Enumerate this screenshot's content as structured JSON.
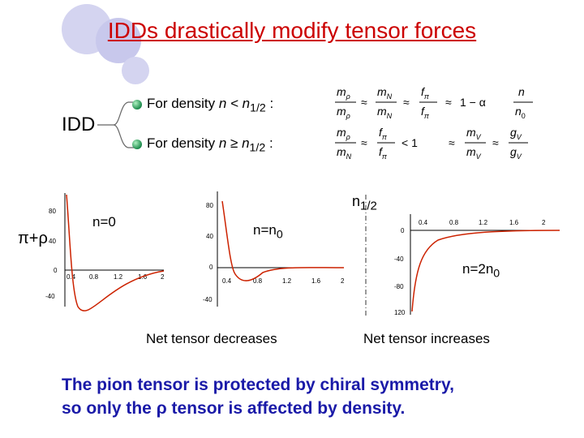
{
  "title": "IDDs drastically modify tensor forces",
  "idd_label": "IDD",
  "bullets": [
    {
      "pre": "For density ",
      "var": "n",
      "rel": " < ",
      "nvar": "n",
      "sub": "1/2",
      "post": " :"
    },
    {
      "pre": "For density ",
      "var": "n",
      "rel": " ≥ ",
      "nvar": "n",
      "sub": "1/2",
      "post": " :"
    }
  ],
  "equations": {
    "row1": {
      "mrho": "m",
      "mrho_sub": "ρ",
      "mN": "m",
      "mN_sub": "N",
      "fpi": "f",
      "fpi_sub": "π",
      "approx": "≈",
      "one_minus": "1 − α",
      "n": "n",
      "n0": "n",
      "n0_sub": "0"
    },
    "row2": {
      "mrho": "m",
      "mrho_sub": "ρ",
      "mN": "m",
      "mN_sub": "N",
      "fpi": "f",
      "fpi_sub": "π",
      "approx": "≈",
      "lt_one": "< 1",
      "mV": "m",
      "mV_sub": "V",
      "gV": "g",
      "gV_sub": "V"
    }
  },
  "n_half_label": {
    "n": "n",
    "sub": "1/2"
  },
  "pi_rho_label": "π+ρ",
  "plots": {
    "p1": {
      "label": "n=0",
      "yticks": [
        "80",
        "40",
        "0",
        "-40"
      ],
      "xticks": [
        "0.4",
        "0.8",
        "1.2",
        "1.6",
        "2"
      ]
    },
    "p2": {
      "label": "n=n",
      "label_sub": "0",
      "yticks": [
        "80",
        "40",
        "0",
        "-40"
      ],
      "xticks": [
        "0.4",
        "0.8",
        "1.2",
        "1.6",
        "2"
      ]
    },
    "p3": {
      "label": "n=2n",
      "label_sub": "0",
      "yticks": [
        "0",
        "-40",
        "-80",
        "120"
      ],
      "xticks": [
        "0.4",
        "0.8",
        "1.2",
        "1.6",
        "2"
      ]
    }
  },
  "captions": {
    "decrease": "Net tensor decreases",
    "increase": "Net tensor increases"
  },
  "bottom_lines": {
    "line1": "The pion tensor is protected by chiral symmetry,",
    "line2_pre": "so only the ",
    "line2_sym": "ρ",
    "line2_post": " tensor is affected by density."
  },
  "colors": {
    "title": "#cc0000",
    "curve": "#cc2200",
    "bottom_text": "#1a1aa8",
    "deco_circles": "#d4d4f0"
  }
}
